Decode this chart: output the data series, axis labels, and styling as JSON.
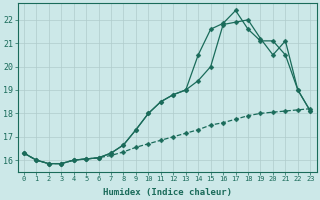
{
  "xlabel": "Humidex (Indice chaleur)",
  "bg_color": "#cce8e8",
  "grid_color": "#b0cccc",
  "line_color": "#1a6b5a",
  "xlim": [
    -0.5,
    23.5
  ],
  "ylim": [
    15.5,
    22.7
  ],
  "xticks": [
    0,
    1,
    2,
    3,
    4,
    5,
    6,
    7,
    8,
    9,
    10,
    11,
    12,
    13,
    14,
    15,
    16,
    17,
    18,
    19,
    20,
    21,
    22,
    23
  ],
  "yticks": [
    16,
    17,
    18,
    19,
    20,
    21,
    22
  ],
  "line1_x": [
    0,
    1,
    2,
    3,
    4,
    5,
    6,
    7,
    8,
    9,
    10,
    11,
    12,
    13,
    14,
    15,
    16,
    17,
    18,
    19,
    20,
    21,
    22,
    23
  ],
  "line1_y": [
    16.3,
    16.0,
    15.85,
    15.85,
    16.0,
    16.05,
    16.1,
    16.2,
    16.35,
    16.55,
    16.7,
    16.85,
    17.0,
    17.15,
    17.3,
    17.5,
    17.6,
    17.75,
    17.9,
    18.0,
    18.05,
    18.1,
    18.15,
    18.2
  ],
  "line2_x": [
    0,
    1,
    2,
    3,
    4,
    5,
    6,
    7,
    8,
    9,
    10,
    11,
    12,
    13,
    14,
    15,
    16,
    17,
    18,
    19,
    20,
    21,
    22,
    23
  ],
  "line2_y": [
    16.3,
    16.0,
    15.85,
    15.85,
    16.0,
    16.05,
    16.1,
    16.3,
    16.65,
    17.3,
    18.0,
    18.5,
    18.8,
    19.0,
    19.4,
    20.0,
    21.8,
    21.9,
    22.0,
    21.2,
    20.5,
    21.1,
    19.0,
    18.1
  ],
  "line3_x": [
    0,
    1,
    2,
    3,
    4,
    5,
    6,
    7,
    8,
    9,
    10,
    11,
    12,
    13,
    14,
    15,
    16,
    17,
    18,
    19,
    20,
    21,
    22,
    23
  ],
  "line3_y": [
    16.3,
    16.0,
    15.85,
    15.85,
    16.0,
    16.05,
    16.1,
    16.3,
    16.65,
    17.3,
    18.0,
    18.5,
    18.8,
    19.0,
    20.5,
    21.6,
    21.85,
    22.4,
    21.6,
    21.1,
    21.1,
    20.5,
    19.0,
    18.1
  ],
  "marker_size": 2.5,
  "linewidth": 0.9
}
